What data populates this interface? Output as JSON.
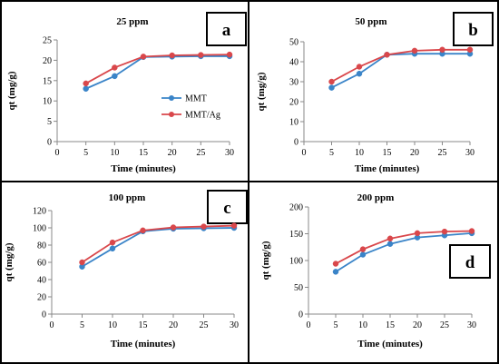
{
  "colors": {
    "MMT": "#3a84c8",
    "MMT/Ag": "#d9474b"
  },
  "chart_data": [
    {
      "type": "line",
      "letter": "a",
      "title": "25 ppm",
      "xlabel": "Time (minutes)",
      "ylabel": "qt (mg/g)",
      "xlim": [
        0,
        30
      ],
      "ylim": [
        0,
        25
      ],
      "xticks": [
        0,
        5,
        10,
        15,
        20,
        25,
        30
      ],
      "yticks": [
        0,
        5,
        10,
        15,
        20,
        25
      ],
      "x": [
        5,
        10,
        15,
        20,
        25,
        30
      ],
      "series": [
        {
          "name": "MMT",
          "values": [
            13.0,
            16.1,
            20.8,
            20.9,
            21.0,
            21.0
          ]
        },
        {
          "name": "MMT/Ag",
          "values": [
            14.3,
            18.2,
            20.9,
            21.2,
            21.3,
            21.4
          ]
        }
      ],
      "legend": "center-right"
    },
    {
      "type": "line",
      "letter": "b",
      "title": "50 ppm",
      "xlabel": "Time (minutes)",
      "ylabel": "qt (mg/g)",
      "xlim": [
        0,
        30
      ],
      "ylim": [
        0,
        50
      ],
      "xticks": [
        0,
        5,
        10,
        15,
        20,
        25,
        30
      ],
      "yticks": [
        0,
        10,
        20,
        30,
        40,
        50
      ],
      "x": [
        5,
        10,
        15,
        20,
        25,
        30
      ],
      "series": [
        {
          "name": "MMT",
          "values": [
            27.0,
            34.0,
            43.5,
            44.0,
            44.0,
            44.0
          ]
        },
        {
          "name": "MMT/Ag",
          "values": [
            30.0,
            37.5,
            43.5,
            45.5,
            46.0,
            46.0
          ]
        }
      ]
    },
    {
      "type": "line",
      "letter": "c",
      "title": "100 ppm",
      "xlabel": "Time (minutes)",
      "ylabel": "qt (mg/g)",
      "xlim": [
        0,
        30
      ],
      "ylim": [
        0,
        120
      ],
      "xticks": [
        0,
        5,
        10,
        15,
        20,
        25,
        30
      ],
      "yticks": [
        0,
        20,
        40,
        60,
        80,
        100,
        120
      ],
      "x": [
        5,
        10,
        15,
        20,
        25,
        30
      ],
      "series": [
        {
          "name": "MMT",
          "values": [
            55,
            76,
            96,
            99,
            99.5,
            100
          ]
        },
        {
          "name": "MMT/Ag",
          "values": [
            60,
            83,
            97,
            100.5,
            101.5,
            102.5
          ]
        }
      ]
    },
    {
      "type": "line",
      "letter": "d",
      "title": "200 ppm",
      "xlabel": "Time (minutes)",
      "ylabel": "qt (mg/g)",
      "xlim": [
        0,
        30
      ],
      "ylim": [
        0,
        200
      ],
      "xticks": [
        0,
        5,
        10,
        15,
        20,
        25,
        30
      ],
      "yticks": [
        0,
        50,
        100,
        150,
        200
      ],
      "x": [
        5,
        10,
        15,
        20,
        25,
        30
      ],
      "series": [
        {
          "name": "MMT",
          "values": [
            79,
            111,
            131,
            143,
            147,
            151
          ]
        },
        {
          "name": "MMT/Ag",
          "values": [
            94,
            121,
            141,
            151,
            154,
            155
          ]
        }
      ]
    }
  ]
}
